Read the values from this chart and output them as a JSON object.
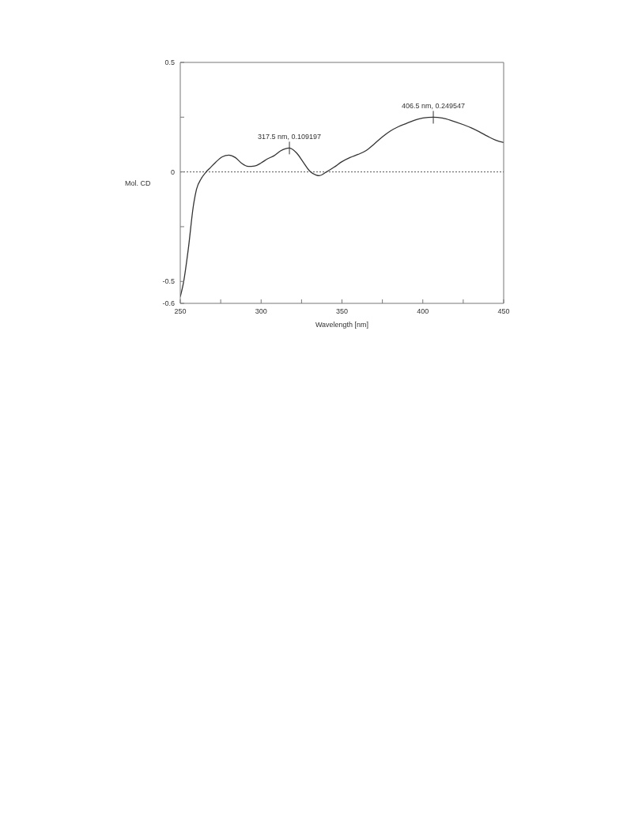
{
  "chart_data": {
    "type": "line",
    "xlabel": "Wavelength [nm]",
    "ylabel": "Mol. CD",
    "x": [
      250,
      252,
      255,
      258,
      260,
      263,
      266,
      268,
      272,
      276,
      280,
      284,
      288,
      292,
      296,
      300,
      304,
      308,
      312,
      317.5,
      322,
      326,
      330,
      334,
      336,
      340,
      345,
      350,
      355,
      360,
      365,
      370,
      375,
      380,
      385,
      390,
      395,
      400,
      406.5,
      412,
      418,
      425,
      430,
      435,
      440,
      445,
      450
    ],
    "series": [
      {
        "color": "#333333",
        "values": [
          -0.57,
          -0.505,
          -0.35,
          -0.16,
          -0.08,
          -0.03,
          0,
          0.015,
          0.045,
          0.069,
          0.077,
          0.066,
          0.039,
          0.025,
          0.027,
          0.041,
          0.06,
          0.074,
          0.096,
          0.109,
          0.086,
          0.045,
          0.004,
          -0.014,
          -0.017,
          -0.002,
          0.021,
          0.047,
          0.066,
          0.08,
          0.098,
          0.128,
          0.16,
          0.187,
          0.207,
          0.222,
          0.236,
          0.246,
          0.25,
          0.246,
          0.234,
          0.216,
          0.201,
          0.183,
          0.163,
          0.145,
          0.134
        ]
      }
    ],
    "xlim": [
      250,
      450
    ],
    "xticks": [
      250,
      {
        "value": 275,
        "label": null
      },
      300,
      {
        "value": 325,
        "label": null
      },
      350,
      {
        "value": 375,
        "label": null
      },
      400,
      {
        "value": 425,
        "label": null
      },
      450
    ],
    "ylim": [
      -0.6,
      0.5
    ],
    "yticks": [
      -0.6,
      -0.5,
      {
        "value": -0.25,
        "label": null
      },
      0,
      {
        "value": 0.25,
        "label": null
      },
      0.5
    ],
    "ref_lines": [
      {
        "axis": "y",
        "value": 0,
        "line_style": "dotted",
        "color": "#555555"
      }
    ],
    "annotations": [
      {
        "text": "317.5 nm, 0.109197",
        "x": 317.5,
        "y": 0.109197
      },
      {
        "text": "406.5 nm, 0.249547",
        "x": 406.5,
        "y": 0.249547
      }
    ],
    "grid": false,
    "legend": false,
    "marker": "none",
    "line_style": "solid"
  }
}
